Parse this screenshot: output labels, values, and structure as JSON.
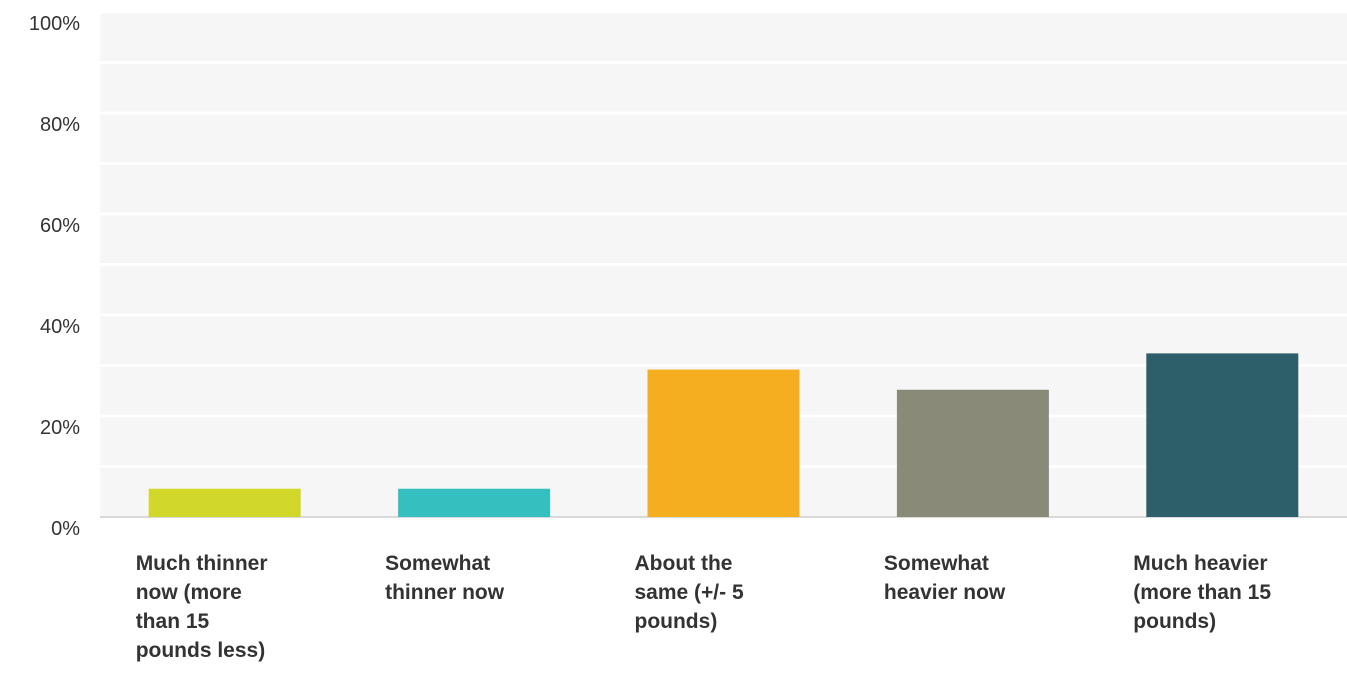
{
  "chart_data": {
    "type": "bar",
    "categories": [
      "Much thinner\nnow (more\nthan 15\npounds less)",
      "Somewhat\nthinner now",
      "About the\nsame (+/- 5\npounds)",
      "Somewhat\nheavier now",
      "Much heavier\n(more than 15\npounds)"
    ],
    "values": [
      5.6,
      5.6,
      29.2,
      25.2,
      32.4
    ],
    "colors": [
      "#d1d82a",
      "#35bfbf",
      "#f5ae1f",
      "#8a8a79",
      "#2d5f6b"
    ],
    "unit": "%",
    "ylim": [
      0,
      100
    ],
    "yticks": [
      "0%",
      "20%",
      "40%",
      "60%",
      "80%",
      "100%"
    ],
    "grid": true,
    "background": "#f6f6f6",
    "title": "",
    "xlabel": "",
    "ylabel": ""
  }
}
